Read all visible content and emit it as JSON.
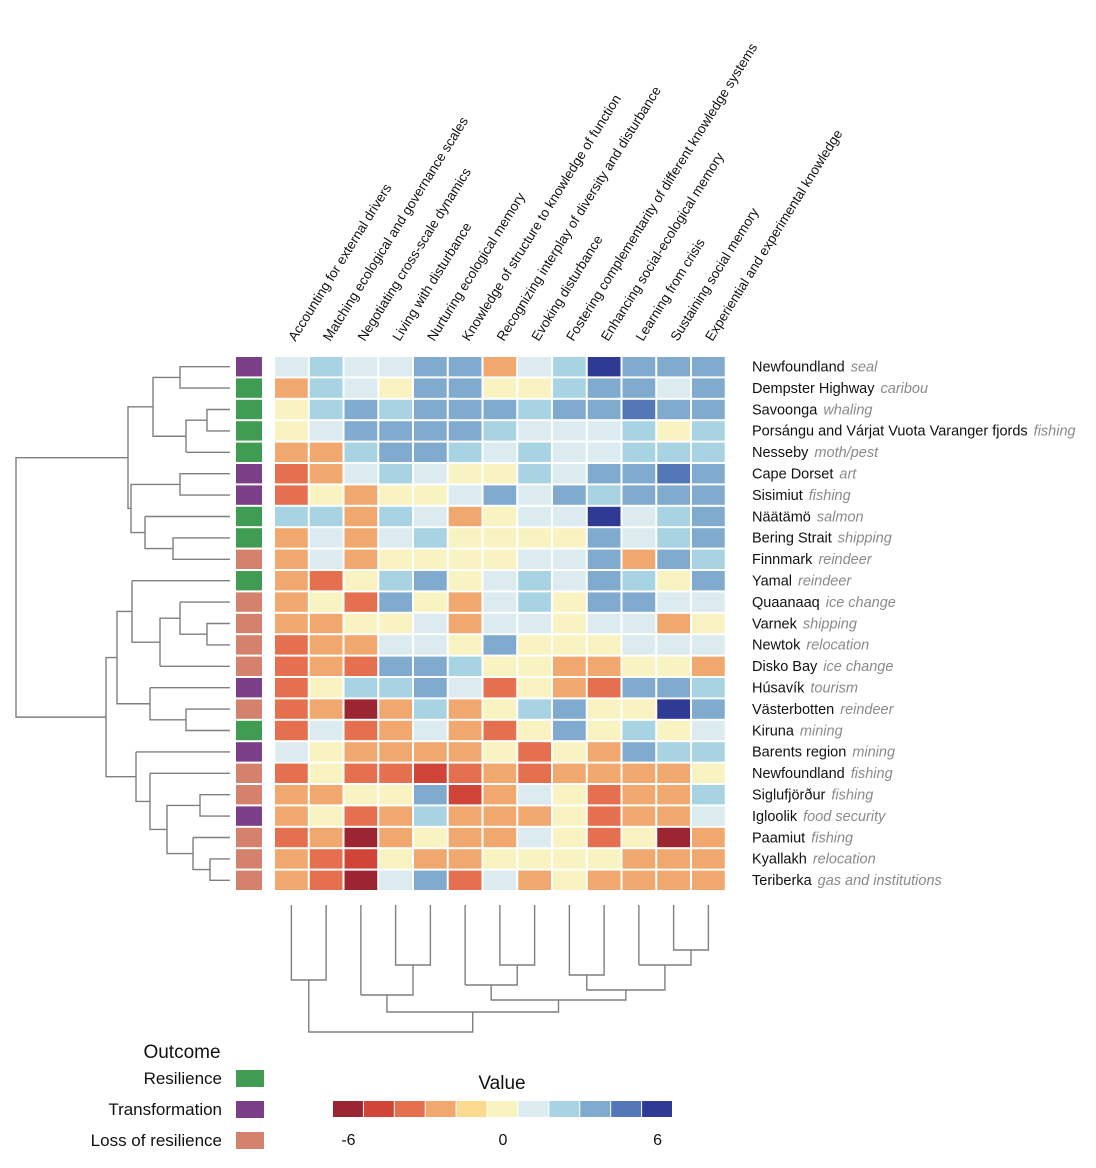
{
  "chart_data": {
    "type": "heatmap",
    "columns": [
      "Accounting for external drivers",
      "Matching ecological and governance scales",
      "Negotiating cross-scale dynamics",
      "Living with disturbance",
      "Nurturing ecological memory",
      "Knowledge of structure to knowledge of function",
      "Recognizing interplay of diversity and disturbance",
      "Evoking disturbance",
      "Fostering complementarity of different knowledge systems",
      "Enhancing social-ecological memory",
      "Learning from crisis",
      "Sustaining social memory",
      "Experiential and experimental knowledge"
    ],
    "rows": [
      {
        "name": "Newfoundland",
        "sub": "seal",
        "outcome": "Transformation",
        "values": [
          1,
          2,
          1,
          1,
          3,
          3,
          -2,
          1,
          2,
          6,
          3,
          3,
          3
        ]
      },
      {
        "name": "Dempster Highway",
        "sub": "caribou",
        "outcome": "Resilience",
        "values": [
          -3,
          2,
          1,
          0,
          3,
          3,
          0,
          0,
          2,
          4,
          3,
          1,
          4
        ]
      },
      {
        "name": "Savoonga",
        "sub": "whaling",
        "outcome": "Resilience",
        "values": [
          0,
          2,
          3,
          2,
          3,
          4,
          3,
          2,
          3,
          4,
          5,
          4,
          4
        ]
      },
      {
        "name": "Porsángu and Várjat Vuota Varanger fjords",
        "sub": "fishing",
        "outcome": "Resilience",
        "values": [
          0,
          1,
          3,
          3,
          3,
          4,
          2,
          1,
          1,
          1,
          2,
          0,
          2
        ]
      },
      {
        "name": "Nesseby",
        "sub": "moth/pest",
        "outcome": "Resilience",
        "values": [
          -2,
          -3,
          2,
          3,
          4,
          2,
          1,
          2,
          1,
          1,
          2,
          2,
          2
        ]
      },
      {
        "name": "Cape Dorset",
        "sub": "art",
        "outcome": "Transformation",
        "values": [
          -4,
          -2,
          1,
          2,
          1,
          0,
          0,
          2,
          1,
          3,
          4,
          5,
          4
        ]
      },
      {
        "name": "Sisimiut",
        "sub": "fishing",
        "outcome": "Transformation",
        "values": [
          -4,
          0,
          -3,
          0,
          0,
          1,
          4,
          1,
          3,
          2,
          4,
          3,
          3
        ]
      },
      {
        "name": "Näätämö",
        "sub": "salmon",
        "outcome": "Resilience",
        "values": [
          2,
          2,
          -2,
          2,
          1,
          -3,
          0,
          1,
          1,
          6,
          1,
          2,
          3
        ]
      },
      {
        "name": "Bering Strait",
        "sub": "shipping",
        "outcome": "Resilience",
        "values": [
          -3,
          1,
          -2,
          1,
          2,
          0,
          0,
          0,
          0,
          3,
          1,
          2,
          3
        ]
      },
      {
        "name": "Finnmark",
        "sub": "reindeer",
        "outcome": "Loss of resilience",
        "values": [
          -3,
          1,
          -3,
          0,
          0,
          0,
          0,
          1,
          1,
          4,
          -3,
          3,
          2
        ]
      },
      {
        "name": "Yamal",
        "sub": "reindeer",
        "outcome": "Resilience",
        "values": [
          -3,
          -4,
          0,
          2,
          4,
          0,
          1,
          2,
          1,
          3,
          2,
          0,
          3
        ]
      },
      {
        "name": "Quaanaaq",
        "sub": "ice change",
        "outcome": "Loss of resilience",
        "values": [
          -2,
          0,
          -4,
          3,
          0,
          -2,
          1,
          2,
          0,
          3,
          3,
          1,
          1
        ]
      },
      {
        "name": "Varnek",
        "sub": "shipping",
        "outcome": "Loss of resilience",
        "values": [
          -3,
          -2,
          0,
          0,
          1,
          -2,
          1,
          1,
          0,
          1,
          1,
          -2,
          0
        ]
      },
      {
        "name": "Newtok",
        "sub": "relocation",
        "outcome": "Loss of resilience",
        "values": [
          -4,
          -2,
          -3,
          1,
          1,
          0,
          4,
          0,
          0,
          0,
          1,
          1,
          1
        ]
      },
      {
        "name": "Disko Bay",
        "sub": "ice change",
        "outcome": "Loss of resilience",
        "values": [
          -4,
          -2,
          -4,
          3,
          3,
          2,
          0,
          0,
          -2,
          -2,
          0,
          0,
          -2
        ]
      },
      {
        "name": "Húsavík",
        "sub": "tourism",
        "outcome": "Transformation",
        "values": [
          -4,
          0,
          2,
          2,
          3,
          1,
          -4,
          0,
          -3,
          -4,
          3,
          3,
          2
        ]
      },
      {
        "name": "Västerbotten",
        "sub": "reindeer",
        "outcome": "Loss of resilience",
        "values": [
          -4,
          -3,
          -6,
          -2,
          2,
          -3,
          0,
          2,
          3,
          0,
          0,
          6,
          3
        ]
      },
      {
        "name": "Kiruna",
        "sub": "mining",
        "outcome": "Resilience",
        "values": [
          -4,
          1,
          -4,
          -3,
          1,
          -2,
          -4,
          0,
          3,
          0,
          2,
          0,
          1
        ]
      },
      {
        "name": "Barents region",
        "sub": "mining",
        "outcome": "Transformation",
        "values": [
          1,
          0,
          -3,
          -2,
          -2,
          -2,
          0,
          -4,
          0,
          -3,
          3,
          2,
          2
        ]
      },
      {
        "name": "Newfoundland",
        "sub": "fishing",
        "outcome": "Loss of resilience",
        "values": [
          -4,
          0,
          -4,
          -4,
          -5,
          -4,
          -2,
          -4,
          -2,
          -3,
          -3,
          -2,
          0
        ]
      },
      {
        "name": "Siglufjörður",
        "sub": "fishing",
        "outcome": "Loss of resilience",
        "values": [
          -3,
          -3,
          0,
          0,
          4,
          -5,
          -2,
          1,
          0,
          -4,
          -3,
          -2,
          2
        ]
      },
      {
        "name": "Igloolik",
        "sub": "food security",
        "outcome": "Transformation",
        "values": [
          -3,
          0,
          -4,
          -2,
          2,
          -3,
          -2,
          -2,
          0,
          -4,
          -3,
          -2,
          1
        ]
      },
      {
        "name": "Paamiut",
        "sub": "fishing",
        "outcome": "Loss of resilience",
        "values": [
          -4,
          -3,
          -6,
          -3,
          0,
          -2,
          -2,
          1,
          0,
          -4,
          0,
          -6,
          -3
        ]
      },
      {
        "name": "Kyallakh",
        "sub": "relocation",
        "outcome": "Loss of resilience",
        "values": [
          -3,
          -4,
          -5,
          0,
          -2,
          -2,
          0,
          0,
          0,
          0,
          -2,
          -2,
          -2
        ]
      },
      {
        "name": "Teriberka",
        "sub": "gas and institutions",
        "outcome": "Loss of resilience",
        "values": [
          -2,
          -4,
          -6,
          1,
          3,
          -4,
          1,
          -3,
          0,
          -2,
          -2,
          -2,
          -3
        ]
      }
    ],
    "color_scale": [
      "#9b2530",
      "#d04537",
      "#e5704f",
      "#f0a86e",
      "#fbd98e",
      "#f9f3c2",
      "#dcebf0",
      "#a7d3e3",
      "#80abcf",
      "#5477b7",
      "#2f3a94"
    ],
    "value_range": [
      -6,
      6
    ]
  },
  "legend": {
    "outcome_title": "Outcome",
    "outcomes": [
      {
        "label": "Resilience",
        "color": "#3f9c52"
      },
      {
        "label": "Transformation",
        "color": "#7a3f86"
      },
      {
        "label": "Loss of resilience",
        "color": "#d4826d"
      }
    ],
    "value_title": "Value",
    "ticks": [
      "-6",
      "0",
      "6"
    ]
  }
}
